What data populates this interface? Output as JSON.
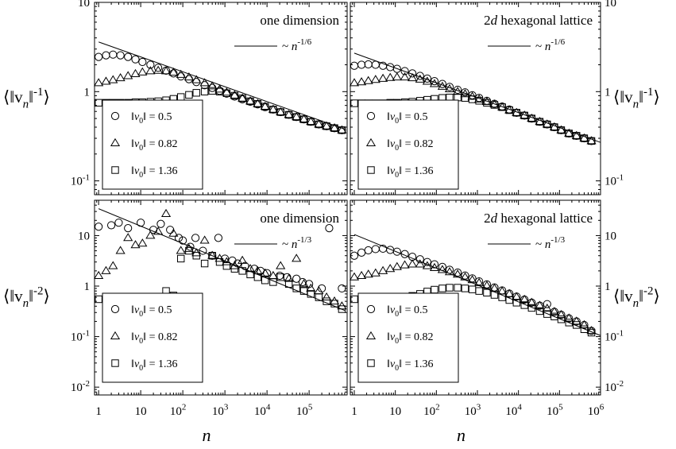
{
  "chart_data": [
    {
      "type": "scatter",
      "title": "one dimension",
      "fit_label": "~ n^{-1/6}",
      "ylabel": "⟨‖v_n‖^{-1}⟩",
      "xlabel": "",
      "xscale": "log",
      "yscale": "log",
      "xlim": [
        0.8,
        800000
      ],
      "ylim": [
        0.07,
        10
      ],
      "x_ticks": [],
      "y_ticks": [
        {
          "value": 0.1,
          "label": "10^-1"
        },
        {
          "value": 1,
          "label": "1"
        },
        {
          "value": 10,
          "label": "10"
        }
      ],
      "legend_position": "bottom-left",
      "fit": {
        "exponent": -0.1667,
        "x": [
          1,
          700000
        ],
        "y": [
          3.6,
          0.38
        ]
      },
      "series": [
        {
          "name": "‖v_0‖ = 0.5",
          "marker": "circle",
          "x": [
            1,
            1.5,
            2.2,
            3.3,
            5,
            7.5,
            11,
            17,
            26,
            40,
            60,
            90,
            140,
            210,
            330,
            500,
            750,
            1100,
            1700,
            2600,
            4000,
            6000,
            9000,
            14000,
            21000,
            33000,
            50000,
            75000,
            110000,
            170000,
            260000,
            400000,
            600000
          ],
          "y": [
            2.45,
            2.55,
            2.6,
            2.55,
            2.45,
            2.3,
            2.15,
            2.0,
            1.85,
            1.72,
            1.6,
            1.48,
            1.38,
            1.28,
            1.18,
            1.1,
            1.02,
            0.95,
            0.88,
            0.82,
            0.77,
            0.72,
            0.67,
            0.63,
            0.59,
            0.55,
            0.52,
            0.49,
            0.46,
            0.43,
            0.41,
            0.39,
            0.37
          ]
        },
        {
          "name": "‖v_0‖ = 0.82",
          "marker": "triangle",
          "x": [
            1,
            1.5,
            2.2,
            3.3,
            5,
            7.5,
            11,
            17,
            26,
            40,
            60,
            90,
            140,
            210,
            330,
            500,
            750,
            1100,
            1700,
            2600,
            4000,
            6000,
            9000,
            14000,
            21000,
            33000,
            50000,
            75000,
            110000,
            170000,
            260000,
            400000,
            600000
          ],
          "y": [
            1.25,
            1.3,
            1.35,
            1.42,
            1.5,
            1.58,
            1.65,
            1.7,
            1.72,
            1.7,
            1.64,
            1.55,
            1.45,
            1.35,
            1.25,
            1.15,
            1.06,
            0.98,
            0.91,
            0.84,
            0.78,
            0.73,
            0.68,
            0.63,
            0.59,
            0.55,
            0.52,
            0.49,
            0.46,
            0.43,
            0.41,
            0.39,
            0.37
          ]
        },
        {
          "name": "‖v_0‖ = 1.36",
          "marker": "square",
          "x": [
            1,
            1.5,
            2.2,
            3.3,
            5,
            7.5,
            11,
            17,
            26,
            40,
            60,
            90,
            140,
            210,
            330,
            500,
            750,
            1100,
            1700,
            2600,
            4000,
            6000,
            9000,
            14000,
            21000,
            33000,
            50000,
            75000,
            110000,
            170000,
            260000,
            400000,
            600000
          ],
          "y": [
            0.75,
            0.75,
            0.75,
            0.75,
            0.75,
            0.76,
            0.76,
            0.77,
            0.78,
            0.8,
            0.83,
            0.87,
            0.92,
            0.97,
            1.0,
            1.02,
            1.0,
            0.96,
            0.9,
            0.84,
            0.78,
            0.73,
            0.68,
            0.63,
            0.59,
            0.55,
            0.52,
            0.49,
            0.46,
            0.43,
            0.41,
            0.39,
            0.37
          ]
        }
      ]
    },
    {
      "type": "scatter",
      "title": "2d  hexagonal lattice",
      "fit_label": "~ n^{-1/6}",
      "ylabel": "⟨‖v_n‖^{-1}⟩",
      "xlabel": "",
      "xscale": "log",
      "yscale": "log",
      "xlim": [
        0.8,
        1000000
      ],
      "ylim": [
        0.07,
        10
      ],
      "x_ticks": [],
      "y_ticks": [
        {
          "value": 0.1,
          "label": "10^-1"
        },
        {
          "value": 1,
          "label": "1"
        },
        {
          "value": 10,
          "label": "10"
        }
      ],
      "legend_position": "bottom-left",
      "fit": {
        "exponent": -0.1667,
        "x": [
          1,
          1000000
        ],
        "y": [
          2.7,
          0.27
        ]
      },
      "series": [
        {
          "name": "‖v_0‖ = 0.5",
          "marker": "circle",
          "x": [
            1,
            1.5,
            2.2,
            3.3,
            5,
            7.5,
            11,
            17,
            26,
            40,
            60,
            90,
            140,
            210,
            330,
            500,
            750,
            1100,
            1700,
            2600,
            4000,
            6000,
            9000,
            14000,
            21000,
            33000,
            50000,
            75000,
            110000,
            170000,
            260000,
            400000,
            600000
          ],
          "y": [
            1.95,
            2.0,
            2.02,
            2.0,
            1.95,
            1.88,
            1.8,
            1.7,
            1.6,
            1.5,
            1.4,
            1.31,
            1.22,
            1.13,
            1.05,
            0.98,
            0.91,
            0.85,
            0.79,
            0.73,
            0.68,
            0.63,
            0.58,
            0.54,
            0.5,
            0.46,
            0.43,
            0.4,
            0.37,
            0.34,
            0.32,
            0.3,
            0.28
          ]
        },
        {
          "name": "‖v_0‖ = 0.82",
          "marker": "triangle",
          "x": [
            1,
            1.5,
            2.2,
            3.3,
            5,
            7.5,
            11,
            17,
            26,
            40,
            60,
            90,
            140,
            210,
            330,
            500,
            750,
            1100,
            1700,
            2600,
            4000,
            6000,
            9000,
            14000,
            21000,
            33000,
            50000,
            75000,
            110000,
            170000,
            260000,
            400000,
            600000
          ],
          "y": [
            1.25,
            1.28,
            1.32,
            1.36,
            1.4,
            1.43,
            1.45,
            1.45,
            1.42,
            1.37,
            1.3,
            1.22,
            1.14,
            1.07,
            1.0,
            0.94,
            0.88,
            0.82,
            0.77,
            0.72,
            0.67,
            0.62,
            0.58,
            0.54,
            0.5,
            0.46,
            0.43,
            0.4,
            0.37,
            0.34,
            0.32,
            0.3,
            0.28
          ]
        },
        {
          "name": "‖v_0‖ = 1.36",
          "marker": "square",
          "x": [
            1,
            1.5,
            2.2,
            3.3,
            5,
            7.5,
            11,
            17,
            26,
            40,
            60,
            90,
            140,
            210,
            330,
            500,
            750,
            1100,
            1700,
            2600,
            4000,
            6000,
            9000,
            14000,
            21000,
            33000,
            50000,
            75000,
            110000,
            170000,
            260000,
            400000,
            600000
          ],
          "y": [
            0.74,
            0.74,
            0.74,
            0.74,
            0.74,
            0.75,
            0.75,
            0.76,
            0.77,
            0.79,
            0.81,
            0.83,
            0.85,
            0.86,
            0.86,
            0.85,
            0.82,
            0.79,
            0.75,
            0.71,
            0.67,
            0.62,
            0.58,
            0.54,
            0.5,
            0.46,
            0.43,
            0.4,
            0.37,
            0.34,
            0.32,
            0.3,
            0.28
          ]
        }
      ]
    },
    {
      "type": "scatter",
      "title": "one dimension",
      "fit_label": "~ n^{-1/3}",
      "ylabel": "⟨‖v_n‖^{-2}⟩",
      "xlabel": "n",
      "xscale": "log",
      "yscale": "log",
      "xlim": [
        0.8,
        800000
      ],
      "ylim": [
        0.007,
        50
      ],
      "x_ticks": [
        {
          "value": 1,
          "label": "1"
        },
        {
          "value": 10,
          "label": "10"
        },
        {
          "value": 100,
          "label": "10^2"
        },
        {
          "value": 1000,
          "label": "10^3"
        },
        {
          "value": 10000,
          "label": "10^4"
        },
        {
          "value": 100000,
          "label": "10^5"
        }
      ],
      "y_ticks": [
        {
          "value": 0.01,
          "label": "10^-2"
        },
        {
          "value": 0.1,
          "label": "10^-1"
        },
        {
          "value": 1,
          "label": "1"
        },
        {
          "value": 10,
          "label": "10"
        }
      ],
      "legend_position": "bottom-left",
      "fit": {
        "exponent": -0.3333,
        "x": [
          1,
          700000
        ],
        "y": [
          34,
          0.33
        ]
      },
      "series": [
        {
          "name": "‖v_0‖ = 0.5",
          "marker": "circle",
          "x": [
            1,
            2,
            3,
            5,
            10,
            20,
            30,
            50,
            80,
            100,
            150,
            200,
            300,
            500,
            700,
            1000,
            1500,
            2000,
            3000,
            5000,
            7000,
            10000,
            20000,
            30000,
            50000,
            70000,
            100000,
            200000,
            300000,
            600000
          ],
          "y": [
            15,
            16,
            18,
            14,
            18,
            13,
            17,
            13,
            9,
            8,
            6,
            9,
            5,
            4,
            9,
            3.5,
            3.2,
            2.8,
            2.5,
            2.2,
            2.0,
            1.8,
            1.6,
            1.5,
            1.4,
            1.2,
            1.1,
            0.9,
            14,
            0.9
          ]
        },
        {
          "name": "‖v_0‖ = 0.82",
          "marker": "triangle",
          "x": [
            1,
            1.5,
            2.2,
            3.3,
            5,
            7.5,
            11,
            17,
            26,
            40,
            60,
            90,
            140,
            210,
            330,
            500,
            750,
            1100,
            1700,
            2600,
            4000,
            6000,
            9000,
            14000,
            21000,
            33000,
            50000,
            75000,
            110000,
            170000,
            260000,
            400000,
            600000
          ],
          "y": [
            1.6,
            2.0,
            2.5,
            5,
            9,
            6.5,
            7,
            10,
            12,
            27,
            11,
            5,
            5.5,
            4.5,
            8,
            4,
            3.5,
            3,
            2.5,
            3.2,
            2.2,
            2,
            1.8,
            1.6,
            2.5,
            1.4,
            3.5,
            1.1,
            0.9,
            0.8,
            0.6,
            0.5,
            0.4
          ]
        },
        {
          "name": "‖v_0‖ = 1.36",
          "marker": "square",
          "x": [
            1,
            1.5,
            2.2,
            3.3,
            5,
            7.5,
            11,
            17,
            26,
            40,
            60,
            90,
            140,
            210,
            330,
            500,
            750,
            1100,
            1700,
            2600,
            4000,
            6000,
            9000,
            14000,
            21000,
            33000,
            50000,
            75000,
            110000,
            170000,
            260000,
            400000,
            600000
          ],
          "y": [
            0.55,
            0.55,
            0.55,
            0.55,
            0.55,
            0.56,
            0.56,
            0.57,
            0.58,
            0.8,
            0.65,
            3.5,
            5,
            4,
            2.8,
            4,
            3,
            2.5,
            2.2,
            2.0,
            1.7,
            1.5,
            1.3,
            1.2,
            1.5,
            1.1,
            0.9,
            0.8,
            0.7,
            0.6,
            0.5,
            0.45,
            0.35
          ]
        }
      ]
    },
    {
      "type": "scatter",
      "title": "2d hexagonal lattice",
      "fit_label": "~ n^{-1/3}",
      "ylabel": "⟨‖v_n‖^{-2}⟩",
      "xlabel": "n",
      "xscale": "log",
      "yscale": "log",
      "xlim": [
        0.8,
        1000000
      ],
      "ylim": [
        0.007,
        50
      ],
      "x_ticks": [
        {
          "value": 1,
          "label": "1"
        },
        {
          "value": 10,
          "label": "10"
        },
        {
          "value": 100,
          "label": "10^2"
        },
        {
          "value": 1000,
          "label": "10^3"
        },
        {
          "value": 10000,
          "label": "10^4"
        },
        {
          "value": 100000,
          "label": "10^5"
        },
        {
          "value": 1000000,
          "label": "10^6"
        }
      ],
      "y_ticks": [
        {
          "value": 0.01,
          "label": "10^-2"
        },
        {
          "value": 0.1,
          "label": "10^-1"
        },
        {
          "value": 1,
          "label": "1"
        },
        {
          "value": 10,
          "label": "10"
        }
      ],
      "legend_position": "bottom-left",
      "fit": {
        "exponent": -0.3333,
        "x": [
          1,
          1000000
        ],
        "y": [
          10.5,
          0.105
        ]
      },
      "series": [
        {
          "name": "‖v_0‖ = 0.5",
          "marker": "circle",
          "x": [
            1,
            1.5,
            2.2,
            3.3,
            5,
            7.5,
            11,
            17,
            26,
            40,
            60,
            90,
            140,
            210,
            330,
            500,
            750,
            1100,
            1700,
            2600,
            4000,
            6000,
            9000,
            14000,
            21000,
            33000,
            50000,
            75000,
            110000,
            170000,
            260000,
            400000,
            600000
          ],
          "y": [
            4.0,
            4.6,
            5.1,
            5.4,
            5.5,
            5.2,
            4.8,
            4.3,
            3.8,
            3.4,
            3.0,
            2.7,
            2.4,
            2.1,
            1.85,
            1.62,
            1.42,
            1.24,
            1.08,
            0.94,
            0.82,
            0.71,
            0.62,
            0.54,
            0.47,
            0.41,
            0.44,
            0.31,
            0.27,
            0.23,
            0.2,
            0.17,
            0.13
          ]
        },
        {
          "name": "‖v_0‖ = 0.82",
          "marker": "triangle",
          "x": [
            1,
            1.5,
            2.2,
            3.3,
            5,
            7.5,
            11,
            17,
            26,
            40,
            60,
            90,
            140,
            210,
            330,
            500,
            750,
            1100,
            1700,
            2600,
            4000,
            6000,
            9000,
            14000,
            21000,
            33000,
            50000,
            75000,
            110000,
            170000,
            260000,
            400000,
            600000
          ],
          "y": [
            1.5,
            1.6,
            1.7,
            1.8,
            2.0,
            2.2,
            2.4,
            2.6,
            2.7,
            2.7,
            2.5,
            2.3,
            2.1,
            1.9,
            1.7,
            1.5,
            1.32,
            1.16,
            1.02,
            0.9,
            0.79,
            0.7,
            0.61,
            0.54,
            0.47,
            0.41,
            0.36,
            0.31,
            0.27,
            0.23,
            0.2,
            0.17,
            0.13
          ]
        },
        {
          "name": "‖v_0‖ = 1.36",
          "marker": "square",
          "x": [
            1,
            1.5,
            2.2,
            3.3,
            5,
            7.5,
            11,
            17,
            26,
            40,
            60,
            90,
            140,
            210,
            330,
            500,
            750,
            1100,
            1700,
            2600,
            4000,
            6000,
            9000,
            14000,
            21000,
            33000,
            50000,
            75000,
            110000,
            170000,
            260000,
            400000,
            600000
          ],
          "y": [
            0.55,
            0.55,
            0.55,
            0.55,
            0.55,
            0.56,
            0.57,
            0.6,
            0.64,
            0.7,
            0.78,
            0.85,
            0.9,
            0.93,
            0.93,
            0.9,
            0.86,
            0.8,
            0.74,
            0.67,
            0.6,
            0.53,
            0.47,
            0.42,
            0.37,
            0.32,
            0.28,
            0.25,
            0.22,
            0.19,
            0.17,
            0.14,
            0.12
          ]
        }
      ]
    }
  ]
}
